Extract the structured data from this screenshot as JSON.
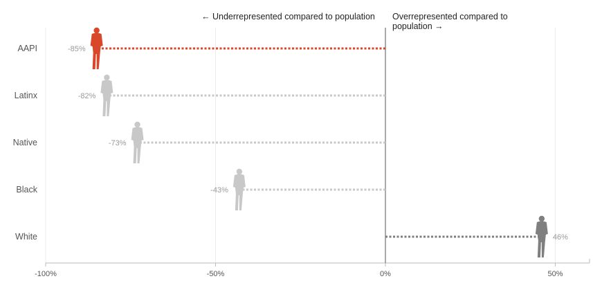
{
  "chart_data": {
    "type": "bar",
    "orientation": "horizontal",
    "title": "",
    "xlabel": "",
    "ylabel": "",
    "xlim": [
      -100,
      60
    ],
    "x_ticks": [
      -100,
      -50,
      0,
      50
    ],
    "x_tick_labels": [
      "-100%",
      "-50%",
      "0%",
      "50%"
    ],
    "grid": true,
    "categories": [
      "AAPI",
      "Latinx",
      "Native",
      "Black",
      "White"
    ],
    "values": [
      -85,
      -82,
      -73,
      -43,
      46
    ],
    "value_labels": [
      "-85%",
      "-82%",
      "-73%",
      "-43%",
      "46%"
    ],
    "annotations": {
      "left": "← Underrepresented compared to population",
      "right": "Overrepresented compared to population →"
    },
    "colors": {
      "highlight": "#d9472b",
      "negative": "#c8c8c8",
      "positive": "#7f7f7f",
      "grid": "#ececec",
      "zero_line": "#555555",
      "axis": "#bbbbbb"
    },
    "highlight_category": "AAPI"
  }
}
